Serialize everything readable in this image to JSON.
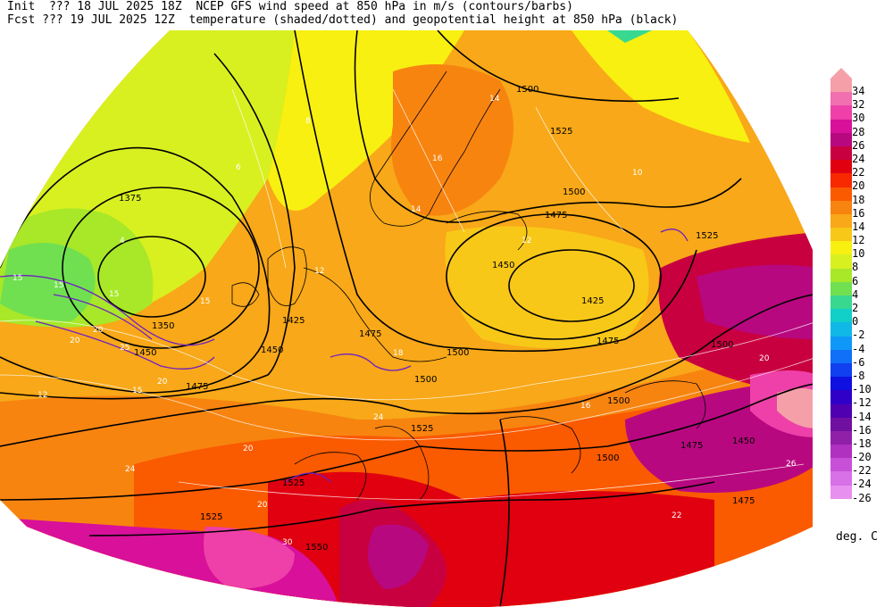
{
  "header": {
    "line1": "Init  ??? 18 JUL 2025 18Z  NCEP GFS wind speed at 850 hPa in m/s (contours/barbs)",
    "line2": "Fcst ??? 19 JUL 2025 12Z  temperature (shaded/dotted) and geopotential height at 850 hPa (black)"
  },
  "legend": {
    "unit": "deg. C",
    "levels": [
      {
        "label": "34",
        "color": "#f5a0a8"
      },
      {
        "label": "32",
        "color": "#f070b0"
      },
      {
        "label": "30",
        "color": "#ee40a8"
      },
      {
        "label": "28",
        "color": "#d8109a"
      },
      {
        "label": "26",
        "color": "#b80880"
      },
      {
        "label": "24",
        "color": "#c80040"
      },
      {
        "label": "22",
        "color": "#e00010"
      },
      {
        "label": "20",
        "color": "#f82800"
      },
      {
        "label": "18",
        "color": "#fa5a00"
      },
      {
        "label": "16",
        "color": "#f88410"
      },
      {
        "label": "14",
        "color": "#f8a818"
      },
      {
        "label": "12",
        "color": "#f8c818"
      },
      {
        "label": "10",
        "color": "#f8f010"
      },
      {
        "label": "8",
        "color": "#d8f020"
      },
      {
        "label": "6",
        "color": "#a8e828"
      },
      {
        "label": "4",
        "color": "#70e050"
      },
      {
        "label": "2",
        "color": "#38d890"
      },
      {
        "label": "0",
        "color": "#10d0c8"
      },
      {
        "label": "-2",
        "color": "#10b8e8"
      },
      {
        "label": "-4",
        "color": "#1098f8"
      },
      {
        "label": "-6",
        "color": "#1070f8"
      },
      {
        "label": "-8",
        "color": "#1040f0"
      },
      {
        "label": "-10",
        "color": "#1010e0"
      },
      {
        "label": "-12",
        "color": "#3000c8"
      },
      {
        "label": "-14",
        "color": "#5000b0"
      },
      {
        "label": "-16",
        "color": "#7010a0"
      },
      {
        "label": "-18",
        "color": "#9020a8"
      },
      {
        "label": "-20",
        "color": "#b030c0"
      },
      {
        "label": "-22",
        "color": "#c850d8"
      },
      {
        "label": "-24",
        "color": "#d870e8"
      },
      {
        "label": "-26",
        "color": "#e890f0"
      }
    ]
  },
  "map": {
    "height_labels": [
      "1375",
      "1350",
      "1425",
      "1450",
      "1475",
      "1475",
      "1500",
      "1525",
      "1500",
      "1475",
      "1450",
      "1425",
      "1475",
      "1500",
      "1525",
      "1500",
      "1525",
      "1525",
      "1550",
      "1500",
      "1475",
      "1450",
      "1475",
      "1500",
      "1500",
      "1450",
      "1525"
    ],
    "temp_labels": [
      "6",
      "4",
      "12",
      "14",
      "16",
      "18",
      "20",
      "22",
      "24",
      "12",
      "10",
      "8",
      "16",
      "14",
      "12",
      "20",
      "24",
      "26"
    ],
    "wind_labels": [
      "15",
      "20",
      "25",
      "15",
      "20",
      "15",
      "15",
      "20",
      "20",
      "15",
      "30"
    ]
  }
}
